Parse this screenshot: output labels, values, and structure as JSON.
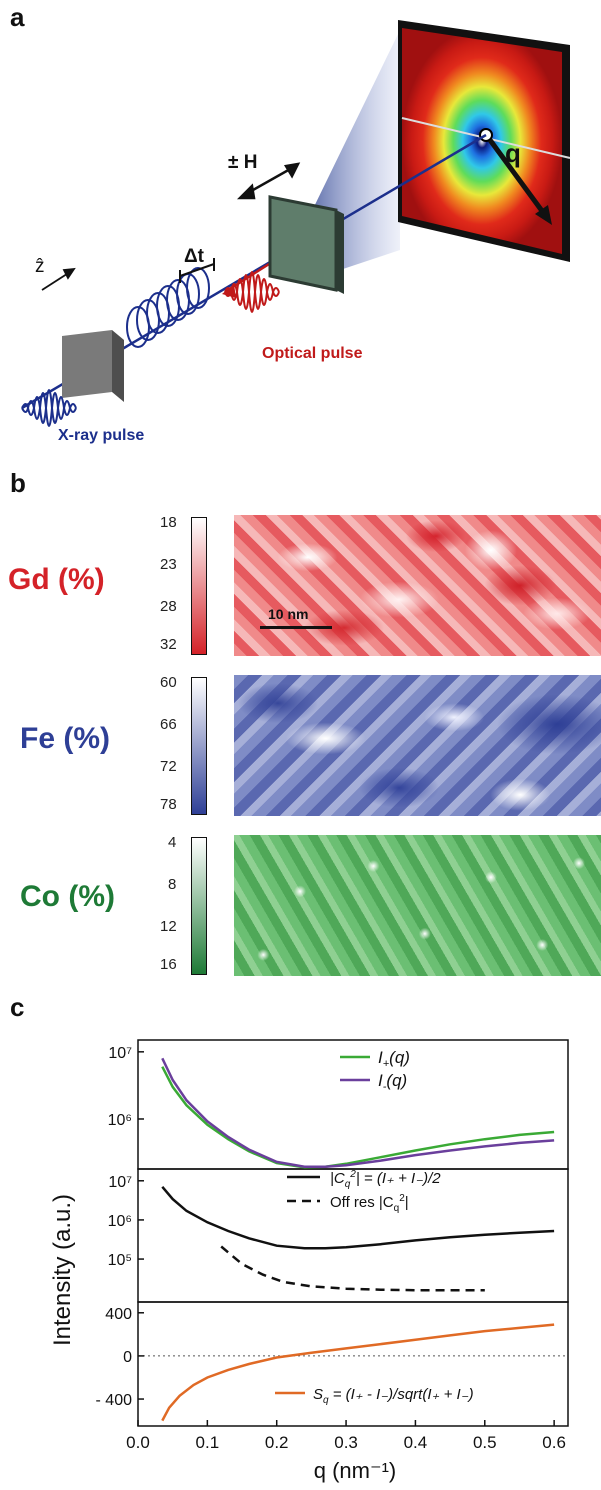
{
  "panels": {
    "a": {
      "letter": "a",
      "labels": {
        "field": "± H",
        "delay": "Δt",
        "z_axis": "ẑ",
        "q": "q",
        "optical": "Optical pulse",
        "xray": "X-ray pulse"
      },
      "colors": {
        "xray": "#1c2f8c",
        "optical": "#c01a1a"
      }
    },
    "b": {
      "letter": "b",
      "scale_bar": "10 nm",
      "maps": [
        {
          "label": "Gd (%)",
          "ticks": [
            "18",
            "23",
            "28",
            "32"
          ],
          "color": "#d42228"
        },
        {
          "label": "Fe (%)",
          "ticks": [
            "60",
            "66",
            "72",
            "78"
          ],
          "color": "#2e3f96"
        },
        {
          "label": "Co (%)",
          "ticks": [
            "4",
            "8",
            "12",
            "16"
          ],
          "color": "#1e7a36"
        }
      ]
    },
    "c": {
      "letter": "c",
      "ylabel": "Intensity (a.u.)",
      "xlabel": "q (nm⁻¹)",
      "xticks": [
        "0.0",
        "0.1",
        "0.2",
        "0.3",
        "0.4",
        "0.5",
        "0.6"
      ]
    }
  },
  "chart_data": [
    {
      "type": "line",
      "yscale": "log",
      "yticks": [
        "10⁷",
        "10⁶"
      ],
      "xlim": [
        0,
        0.62
      ],
      "ylim": [
        180000,
        15000000
      ],
      "series": [
        {
          "name": "I+(q)",
          "color": "#3aaa35",
          "legend_main": "I",
          "legend_sub": "+",
          "legend_tail": "(q)",
          "x": [
            0.035,
            0.05,
            0.07,
            0.1,
            0.13,
            0.16,
            0.2,
            0.24,
            0.27,
            0.3,
            0.35,
            0.4,
            0.45,
            0.5,
            0.55,
            0.6
          ],
          "y": [
            6000000,
            3000000,
            1600000,
            820000,
            500000,
            330000,
            220000,
            190000,
            195000,
            215000,
            270000,
            340000,
            420000,
            500000,
            580000,
            640000
          ]
        },
        {
          "name": "I-(q)",
          "color": "#6a3f9c",
          "legend_main": "I",
          "legend_sub": "-",
          "legend_tail": "(q)",
          "x": [
            0.035,
            0.05,
            0.07,
            0.1,
            0.13,
            0.16,
            0.2,
            0.24,
            0.27,
            0.3,
            0.35,
            0.4,
            0.45,
            0.5,
            0.55,
            0.6
          ],
          "y": [
            8000000,
            3800000,
            1900000,
            920000,
            540000,
            350000,
            230000,
            195000,
            195000,
            205000,
            240000,
            290000,
            340000,
            390000,
            440000,
            480000
          ]
        }
      ]
    },
    {
      "type": "line",
      "yscale": "log",
      "yticks": [
        "10⁷",
        "10⁶",
        "10⁵"
      ],
      "xlim": [
        0,
        0.62
      ],
      "ylim": [
        8000,
        20000000
      ],
      "series": [
        {
          "name": "|Cq²| = (I+ + I-)/2",
          "color": "#111111",
          "dash": "none",
          "x": [
            0.035,
            0.05,
            0.07,
            0.1,
            0.13,
            0.16,
            0.2,
            0.24,
            0.27,
            0.3,
            0.35,
            0.4,
            0.45,
            0.5,
            0.55,
            0.6
          ],
          "y": [
            7000000,
            3400000,
            1700000,
            870000,
            520000,
            340000,
            220000,
            190000,
            190000,
            200000,
            240000,
            300000,
            360000,
            420000,
            470000,
            520000
          ]
        },
        {
          "name": "Off res |Cq²|",
          "color": "#111111",
          "dash": "9,6",
          "x": [
            0.12,
            0.15,
            0.18,
            0.21,
            0.25,
            0.3,
            0.35,
            0.4,
            0.45,
            0.5
          ],
          "y": [
            210000,
            75000,
            40000,
            26000,
            20000,
            17500,
            16500,
            16000,
            16000,
            16000
          ]
        }
      ],
      "legend": [
        {
          "text": "|C",
          "sub": "q",
          "sup": "2",
          "tail": "| = (I₊ + I₋)/2",
          "style": "solid"
        },
        {
          "text": "Off res |C",
          "sub": "q",
          "sup": "2",
          "tail": "|",
          "style": "dashed"
        }
      ]
    },
    {
      "type": "line",
      "yscale": "linear",
      "yticks": [
        "400",
        "0",
        "- 400"
      ],
      "xlim": [
        0,
        0.62
      ],
      "ylim": [
        -650,
        500
      ],
      "zero_line": true,
      "series": [
        {
          "name": "Sq = (I+ - I-)/sqrt(I+ + I-)",
          "color": "#e06a25",
          "legend_text": "S",
          "legend_sub": "q",
          "legend_tail": " = (I₊ - I₋)/sqrt(I₊ + I₋)",
          "x": [
            0.035,
            0.045,
            0.06,
            0.08,
            0.1,
            0.13,
            0.16,
            0.2,
            0.25,
            0.3,
            0.35,
            0.4,
            0.45,
            0.5,
            0.55,
            0.6
          ],
          "y": [
            -600,
            -480,
            -370,
            -270,
            -200,
            -130,
            -75,
            -15,
            30,
            70,
            110,
            150,
            190,
            230,
            260,
            290
          ]
        }
      ]
    }
  ]
}
